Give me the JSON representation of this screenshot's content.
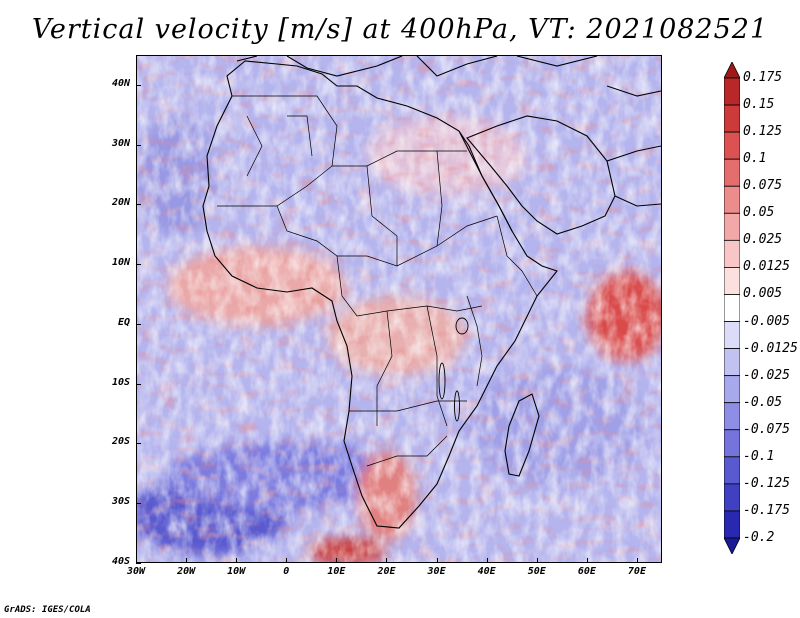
{
  "title": "Vertical velocity [m/s] at 400hPa, VT: 2021082521",
  "footer": "GrADS: IGES/COLA",
  "map": {
    "lon_range": [
      -30,
      75
    ],
    "lat_range": [
      -40,
      45
    ],
    "y_ticks": [
      {
        "lat": 40,
        "label": "40N"
      },
      {
        "lat": 30,
        "label": "30N"
      },
      {
        "lat": 20,
        "label": "20N"
      },
      {
        "lat": 10,
        "label": "10N"
      },
      {
        "lat": 0,
        "label": "EQ"
      },
      {
        "lat": -10,
        "label": "10S"
      },
      {
        "lat": -20,
        "label": "20S"
      },
      {
        "lat": -30,
        "label": "30S"
      },
      {
        "lat": -40,
        "label": "40S"
      }
    ],
    "x_ticks": [
      {
        "lon": -30,
        "label": "30W"
      },
      {
        "lon": -20,
        "label": "20W"
      },
      {
        "lon": -10,
        "label": "10W"
      },
      {
        "lon": 0,
        "label": "0"
      },
      {
        "lon": 10,
        "label": "10E"
      },
      {
        "lon": 20,
        "label": "20E"
      },
      {
        "lon": 30,
        "label": "30E"
      },
      {
        "lon": 40,
        "label": "40E"
      },
      {
        "lon": 50,
        "label": "50E"
      },
      {
        "lon": 60,
        "label": "60E"
      },
      {
        "lon": 70,
        "label": "70E"
      }
    ]
  },
  "colorbar": {
    "labels": [
      "0.175",
      "0.15",
      "0.125",
      "0.1",
      "0.075",
      "0.05",
      "0.025",
      "0.0125",
      "0.005",
      "-0.005",
      "-0.0125",
      "-0.025",
      "-0.05",
      "-0.075",
      "-0.1",
      "-0.125",
      "-0.175",
      "-0.2"
    ],
    "colors": [
      "#a01818",
      "#b82828",
      "#cc3a3a",
      "#dc5252",
      "#e46e6e",
      "#ec8c8c",
      "#f2a8a8",
      "#f8c6c6",
      "#fce0e0",
      "#ffffff",
      "#dcdcf8",
      "#c2c2f2",
      "#a8a8ec",
      "#8e8ee6",
      "#7474dc",
      "#5a5ad0",
      "#4040c2",
      "#2828b0",
      "#1a1a98"
    ]
  }
}
